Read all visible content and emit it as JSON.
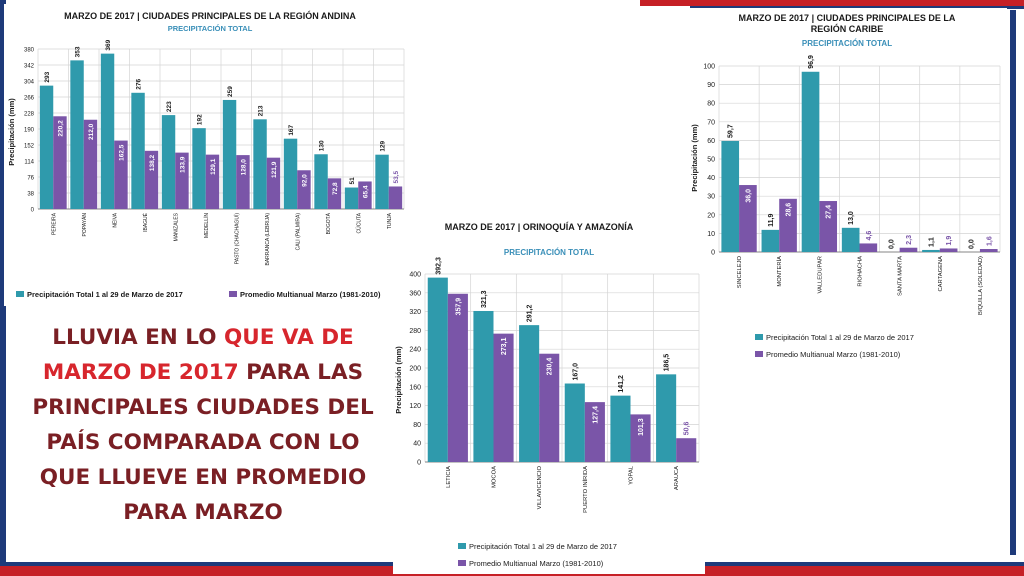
{
  "headline": {
    "part1": "LLUVIA EN LO ",
    "part2": "QUE VA DE MARZO DE 2017",
    "part3": " PARA LAS PRINCIPALES CIUDADES DEL PAÍS COMPARADA CON LO QUE LLUEVE EN PROMEDIO PARA MARZO"
  },
  "colors": {
    "total": "#2f9aac",
    "promedio": "#7a55a8",
    "headline_dark": "#7a1f24",
    "headline_red": "#d7262d",
    "frame_red": "#c62026",
    "frame_blue": "#1e3a7a"
  },
  "chart_data": [
    {
      "type": "bar",
      "title": "MARZO DE 2017 | CIUDADES PRINCIPALES DE LA REGIÓN ANDINA",
      "subtitle": "PRECIPITACIÓN TOTAL",
      "ylabel": "Precipitación (mm)",
      "ylim": [
        0,
        380
      ],
      "yticks": [
        "0",
        "38",
        "76",
        "114",
        "152",
        "190",
        "228",
        "266",
        "304",
        "342",
        "380"
      ],
      "categories": [
        "PEREIRA",
        "POPAYÁN",
        "NEIVA",
        "IBAGUÉ",
        "MANIZALES",
        "MEDELLÍN",
        "PASTO (CHACHAGUÍ)",
        "BARRANCA (LEBRIJA)",
        "CALI (PALMIRA)",
        "BOGOTÁ",
        "CÚCUTA",
        "TUNJA"
      ],
      "series": [
        {
          "name": "Precipitación Total 1 al 29 de Marzo de 2017",
          "values": [
            293,
            353,
            369,
            276,
            223,
            192,
            259,
            213,
            167,
            130,
            51,
            129
          ],
          "labels": [
            "293",
            "353",
            "369",
            "276",
            "223",
            "192",
            "259",
            "213",
            "167",
            "130",
            "51",
            "129"
          ]
        },
        {
          "name": "Promedio Multianual Marzo (1981-2010)",
          "values": [
            220.2,
            212.0,
            162.5,
            138.2,
            133.9,
            129.1,
            128.0,
            121.9,
            92.0,
            72.8,
            65.4,
            53.5
          ],
          "labels": [
            "220,2",
            "212,0",
            "162,5",
            "138,2",
            "133,9",
            "129,1",
            "128,0",
            "121,9",
            "92,0",
            "72,8",
            "65,4",
            "53,5"
          ]
        }
      ],
      "legend": [
        "Precipitación Total 1 al 29 de Marzo de 2017",
        "Promedio Multianual Marzo (1981-2010)"
      ],
      "legend_position": "bottom"
    },
    {
      "type": "bar",
      "title": "MARZO DE 2017 | CIUDADES PRINCIPALES DE LA REGIÓN CARIBE",
      "title_line1": "MARZO DE 2017 | CIUDADES PRINCIPALES DE LA",
      "title_line2": "REGIÓN CARIBE",
      "subtitle": "PRECIPITACIÓN TOTAL",
      "ylabel": "Precipitación (mm)",
      "ylim": [
        0,
        100
      ],
      "yticks": [
        "0",
        "10",
        "20",
        "30",
        "40",
        "50",
        "60",
        "70",
        "80",
        "90",
        "100"
      ],
      "categories": [
        "SINCELEJO",
        "MONTERÍA",
        "VALLEDUPAR",
        "RIOHACHA",
        "SANTA MARTA",
        "CARTAGENA",
        "B/QUILLA (SOLEDAD)"
      ],
      "series": [
        {
          "name": "Precipitación Total 1 al 29 de Marzo de 2017",
          "values": [
            59.7,
            11.9,
            96.9,
            13.0,
            0.0,
            1.1,
            0.0
          ],
          "labels": [
            "59,7",
            "11,9",
            "96,9",
            "13,0",
            "0,0",
            "1,1",
            "0,0"
          ]
        },
        {
          "name": "Promedio Multianual Marzo (1981-2010)",
          "values": [
            36.0,
            28.6,
            27.4,
            4.6,
            2.3,
            1.9,
            1.6
          ],
          "labels": [
            "36,0",
            "28,6",
            "27,4",
            "4,6",
            "2,3",
            "1,9",
            "1,6"
          ]
        }
      ],
      "legend": [
        "Precipitación Total 1 al 29 de Marzo de 2017",
        "Promedio Multianual Marzo (1981-2010)"
      ],
      "legend_position": "bottom"
    },
    {
      "type": "bar",
      "title": "MARZO DE 2017 | ORINOQUÍA Y AMAZONÍA",
      "subtitle": "PRECIPITACIÓN TOTAL",
      "ylabel": "Precipitación (mm)",
      "ylim": [
        0,
        400
      ],
      "yticks": [
        "0",
        "40",
        "80",
        "120",
        "160",
        "200",
        "240",
        "280",
        "320",
        "360",
        "400"
      ],
      "categories": [
        "LETICIA",
        "MOCOA",
        "VILLAVICENCIO",
        "PUERTO INÍRIDA",
        "YOPAL",
        "ARAUCA"
      ],
      "series": [
        {
          "name": "Precipitación Total 1 al 29 de Marzo de 2017",
          "values": [
            392.3,
            321.3,
            291.2,
            167.0,
            141.2,
            186.5
          ],
          "labels": [
            "392,3",
            "321,3",
            "291,2",
            "167,0",
            "141,2",
            "186,5"
          ]
        },
        {
          "name": "Promedio Multianual Marzo (1981-2010)",
          "values": [
            357.9,
            273.1,
            230.4,
            127.4,
            101.3,
            50.6
          ],
          "labels": [
            "357,9",
            "273,1",
            "230,4",
            "127,4",
            "101,3",
            "50,6"
          ]
        }
      ],
      "legend": [
        "Precipitación Total 1 al 29 de Marzo de 2017",
        "Promedio Multianual Marzo (1981-2010)"
      ],
      "legend_position": "bottom"
    }
  ]
}
